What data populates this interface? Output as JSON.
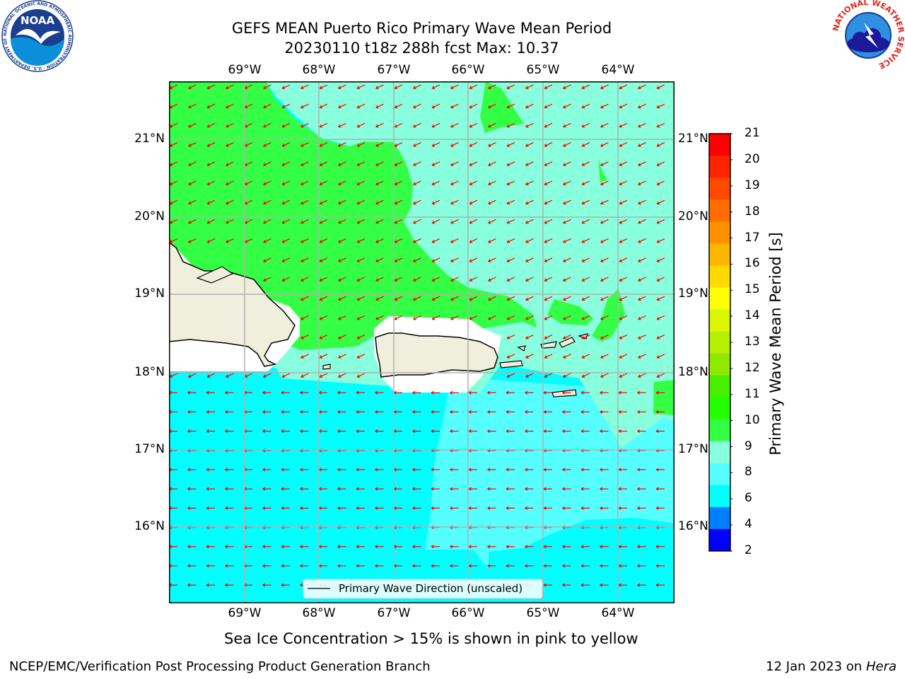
{
  "title": {
    "line1": "GEFS MEAN Puerto Rico Primary Wave Mean Period",
    "line2": "20230110 t18z 288h fcst   Max: 10.37"
  },
  "axes": {
    "lon_labels": [
      "69°W",
      "68°W",
      "67°W",
      "66°W",
      "65°W",
      "64°W"
    ],
    "lat_labels": [
      "21°N",
      "20°N",
      "19°N",
      "18°N",
      "17°N",
      "16°N"
    ]
  },
  "legend": {
    "label": "Primary Wave Direction (unscaled)"
  },
  "colorbar": {
    "title": "Primary Wave Mean Period [s]",
    "ticks": [
      "21",
      "20",
      "19",
      "18",
      "17",
      "16",
      "15",
      "14",
      "13",
      "12",
      "11",
      "10",
      "9",
      "8",
      "6",
      "4",
      "2"
    ],
    "colors": [
      "#ff0000",
      "#ff2400",
      "#ff4800",
      "#ff6d00",
      "#ff9100",
      "#ffb600",
      "#ffda00",
      "#ffff00",
      "#daf700",
      "#b6ef00",
      "#91e800",
      "#48f000",
      "#24ff00",
      "#33ff44",
      "#88ffdd",
      "#55ffff",
      "#00ffff",
      "#0080ff",
      "#0000ff"
    ]
  },
  "note": "Sea Ice Concentration > 15% is shown in pink to yellow",
  "footer": {
    "left": "NCEP/EMC/Verification Post Processing Product Generation Branch",
    "right_prefix": "12 Jan 2023 on ",
    "right_host": "Hera"
  },
  "logos": {
    "noaa_text": "NOAA",
    "noaa_ring": "NATIONAL OCEANIC AND ATMOSPHERIC ADMINISTRATION · U.S. DEPARTMENT OF COMMERCE",
    "nws_ring": "NATIONAL WEATHER SERVICE"
  },
  "colors": {
    "land": "#f0eedc",
    "arrow": "#ff0000",
    "field_green": "#33ff44",
    "field_mint": "#88ffdd",
    "field_lightcyan": "#55ffff",
    "field_cyan": "#00ffff"
  }
}
